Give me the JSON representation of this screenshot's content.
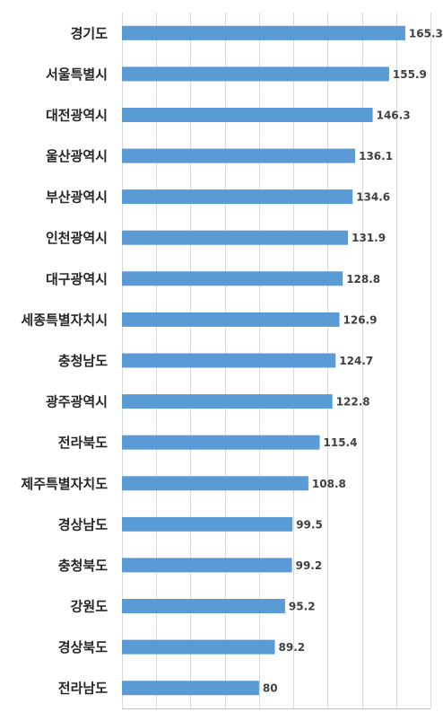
{
  "chart_data": {
    "type": "bar",
    "orientation": "horizontal",
    "categories": [
      "경기도",
      "서울특별시",
      "대전광역시",
      "울산광역시",
      "부산광역시",
      "인천광역시",
      "대구광역시",
      "세종특별자치시",
      "충청남도",
      "광주광역시",
      "전라북도",
      "제주특별자치도",
      "경상남도",
      "충청북도",
      "강원도",
      "경상북도",
      "전라남도"
    ],
    "values": [
      165.3,
      155.9,
      146.3,
      136.1,
      134.6,
      131.9,
      128.8,
      126.9,
      124.7,
      122.8,
      115.4,
      108.8,
      99.5,
      99.2,
      95.2,
      89.2,
      80
    ],
    "value_labels": [
      "165.3",
      "155.9",
      "146.3",
      "136.1",
      "134.6",
      "131.9",
      "128.8",
      "126.9",
      "124.7",
      "122.8",
      "115.4",
      "108.8",
      "99.5",
      "99.2",
      "95.2",
      "89.2",
      "80"
    ],
    "xlim": [
      0,
      180
    ],
    "x_grid_step": 20,
    "grid": true,
    "legend": "none",
    "bar_color": "#5B9BD5",
    "title": "",
    "xlabel": "",
    "ylabel": ""
  }
}
